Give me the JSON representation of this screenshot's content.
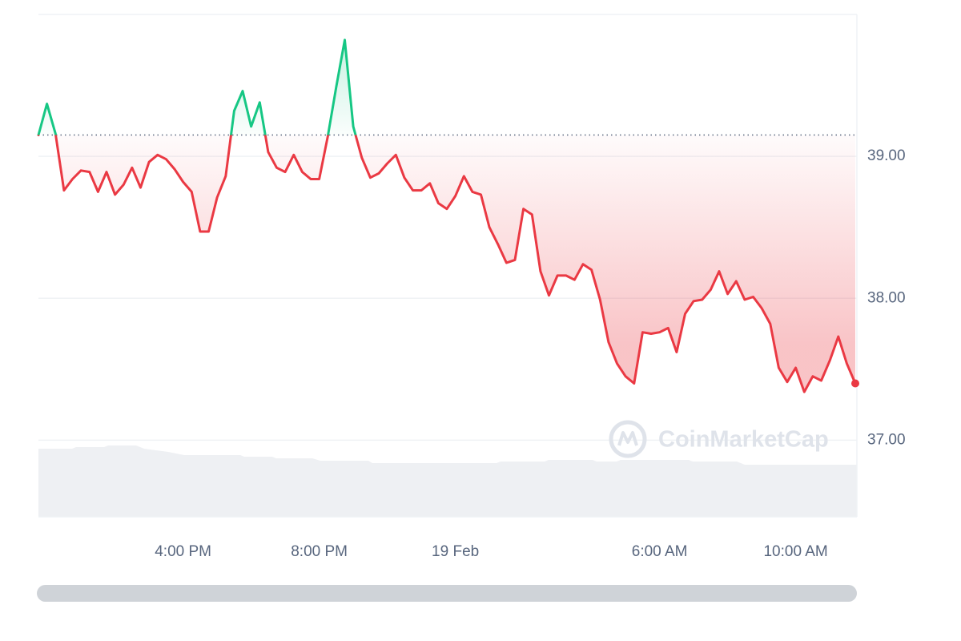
{
  "chart_data": {
    "type": "line",
    "categories": [
      null,
      null,
      null,
      null,
      null,
      null,
      null,
      null,
      null,
      null,
      null,
      null,
      null,
      null,
      null,
      null,
      null,
      "4:00 PM",
      null,
      null,
      null,
      null,
      null,
      null,
      null,
      null,
      null,
      null,
      null,
      null,
      null,
      null,
      null,
      "8:00 PM",
      null,
      null,
      null,
      null,
      null,
      null,
      null,
      null,
      null,
      null,
      null,
      null,
      null,
      null,
      null,
      "19 Feb",
      null,
      null,
      null,
      null,
      null,
      null,
      null,
      null,
      null,
      null,
      null,
      null,
      null,
      null,
      null,
      null,
      null,
      null,
      null,
      null,
      null,
      null,
      null,
      "6:00 AM",
      null,
      null,
      null,
      null,
      null,
      null,
      null,
      null,
      null,
      null,
      null,
      null,
      null,
      null,
      null,
      "10:00 AM",
      null,
      null,
      null,
      null,
      null,
      null,
      null
    ],
    "series": [
      {
        "color": "#ea3943",
        "color_above_baseline": "#16c784",
        "values": [
          39.15,
          39.37,
          39.16,
          38.76,
          38.84,
          38.9,
          38.89,
          38.75,
          38.89,
          38.73,
          38.8,
          38.92,
          38.78,
          38.96,
          39.01,
          38.98,
          38.91,
          38.82,
          38.75,
          38.47,
          38.47,
          38.71,
          38.86,
          39.32,
          39.46,
          39.21,
          39.38,
          39.03,
          38.92,
          38.89,
          39.01,
          38.89,
          38.84,
          38.84,
          39.14,
          39.49,
          39.82,
          39.21,
          38.99,
          38.85,
          38.88,
          38.95,
          39.01,
          38.85,
          38.76,
          38.76,
          38.81,
          38.67,
          38.63,
          38.72,
          38.86,
          38.75,
          38.73,
          38.5,
          38.38,
          38.25,
          38.27,
          38.63,
          38.59,
          38.19,
          38.02,
          38.16,
          38.16,
          38.13,
          38.24,
          38.2,
          37.99,
          37.69,
          37.54,
          37.45,
          37.4,
          37.76,
          37.75,
          37.76,
          37.79,
          37.62,
          37.89,
          37.98,
          37.99,
          38.06,
          38.19,
          38.03,
          38.12,
          37.99,
          38.01,
          37.93,
          37.82,
          37.51,
          37.41,
          37.51,
          37.34,
          37.45,
          37.42,
          37.56,
          37.73,
          37.54,
          37.4
        ]
      }
    ],
    "baseline": 39.15,
    "ylim": [
      36.46,
      40.0
    ],
    "yticks": [
      {
        "value": 37,
        "label": "37.00"
      },
      {
        "value": 38,
        "label": "38.00"
      },
      {
        "value": 39,
        "label": "39.00"
      }
    ],
    "grid": true,
    "watermark": "CoinMarketCap"
  }
}
